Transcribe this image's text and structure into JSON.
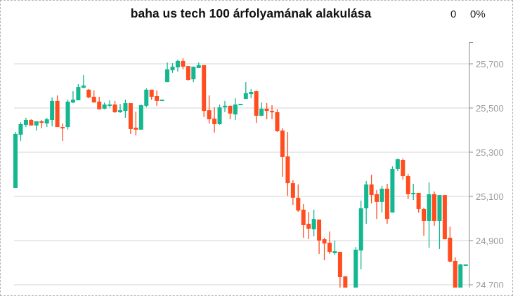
{
  "header": {
    "title": "baha us tech 100 árfolyamának alakulása",
    "change": "0",
    "change_pct": "0%"
  },
  "colors": {
    "up": "#14b78f",
    "down": "#ff4d1f",
    "grid": "#d6d6d6",
    "axis": "#888888"
  },
  "chart_data": {
    "type": "candlestick",
    "title": "baha us tech 100 árfolyamának alakulása",
    "ylim": [
      24687,
      25798
    ],
    "yticks": [
      25700,
      25500,
      25300,
      25100,
      24900,
      24700
    ],
    "ytick_labels": [
      "25,700",
      "25,500",
      "25,300",
      "25,100",
      "24,900",
      "24,700"
    ],
    "grid": true,
    "y_axis_position": "right",
    "fields": [
      "open",
      "high",
      "low",
      "close"
    ],
    "candles": [
      [
        25138,
        25392,
        25138,
        25383
      ],
      [
        25379,
        25436,
        25351,
        25427
      ],
      [
        25424,
        25456,
        25414,
        25446
      ],
      [
        25446,
        25449,
        25421,
        25421
      ],
      [
        25421,
        25440,
        25398,
        25440
      ],
      [
        25440,
        25446,
        25408,
        25433
      ],
      [
        25430,
        25456,
        25414,
        25449
      ],
      [
        25446,
        25548,
        25417,
        25532
      ],
      [
        25532,
        25557,
        25414,
        25414
      ],
      [
        25414,
        25430,
        25351,
        25412
      ],
      [
        25414,
        25538,
        25402,
        25529
      ],
      [
        25525,
        25576,
        25522,
        25538
      ],
      [
        25535,
        25608,
        25535,
        25595
      ],
      [
        25592,
        25649,
        25589,
        25602
      ],
      [
        25583,
        25586,
        25544,
        25548
      ],
      [
        25551,
        25579,
        25525,
        25525
      ],
      [
        25529,
        25551,
        25494,
        25494
      ],
      [
        25497,
        25525,
        25494,
        25516
      ],
      [
        25510,
        25535,
        25503,
        25516
      ],
      [
        25516,
        25532,
        25478,
        25481
      ],
      [
        25481,
        25519,
        25478,
        25490
      ],
      [
        25487,
        25538,
        25456,
        25522
      ],
      [
        25522,
        25522,
        25383,
        25405
      ],
      [
        25411,
        25484,
        25376,
        25402
      ],
      [
        25402,
        25516,
        25402,
        25513
      ],
      [
        25510,
        25589,
        25503,
        25583
      ],
      [
        25583,
        25583,
        25538,
        25551
      ],
      [
        25554,
        25579,
        25510,
        25532
      ],
      [
        25532,
        25538,
        25532,
        25538
      ],
      [
        25617,
        25706,
        25617,
        25675
      ],
      [
        25671,
        25703,
        25659,
        25687
      ],
      [
        25684,
        25719,
        25665,
        25713
      ],
      [
        25713,
        25725,
        25675,
        25687
      ],
      [
        25690,
        25690,
        25624,
        25627
      ],
      [
        25630,
        25687,
        25617,
        25687
      ],
      [
        25681,
        25706,
        25681,
        25694
      ],
      [
        25694,
        25694,
        25459,
        25487
      ],
      [
        25490,
        25557,
        25430,
        25449
      ],
      [
        25452,
        25503,
        25389,
        25427
      ],
      [
        25427,
        25516,
        25424,
        25503
      ],
      [
        25503,
        25532,
        25481,
        25510
      ],
      [
        25510,
        25510,
        25449,
        25475
      ],
      [
        25471,
        25544,
        25446,
        25516
      ],
      [
        25513,
        25519,
        25513,
        25519
      ],
      [
        25541,
        25617,
        25541,
        25567
      ],
      [
        25563,
        25586,
        25544,
        25573
      ],
      [
        25576,
        25579,
        25433,
        25465
      ],
      [
        25465,
        25525,
        25462,
        25497
      ],
      [
        25497,
        25522,
        25449,
        25487
      ],
      [
        25487,
        25513,
        25449,
        25481
      ],
      [
        25481,
        25494,
        25392,
        25395
      ],
      [
        25398,
        25408,
        25189,
        25278
      ],
      [
        25281,
        25392,
        25103,
        25160
      ],
      [
        25160,
        25173,
        25062,
        25094
      ],
      [
        25094,
        25154,
        25030,
        25036
      ],
      [
        25040,
        25065,
        24913,
        24970
      ],
      [
        24976,
        25030,
        24906,
        24954
      ],
      [
        24951,
        25040,
        24919,
        24998
      ],
      [
        24995,
        24995,
        24840,
        24900
      ],
      [
        24906,
        24913,
        24811,
        24887
      ],
      [
        24890,
        24941,
        24840,
        24849
      ],
      [
        24843,
        24900,
        24836,
        24852
      ],
      [
        24849,
        24849,
        24687,
        24735
      ],
      [
        24738,
        24738,
        24640,
        24660
      ],
      null,
      [
        24650,
        24871,
        24620,
        24859
      ],
      [
        24855,
        25081,
        24770,
        25046
      ],
      [
        25046,
        25170,
        24976,
        25154
      ],
      [
        25154,
        25198,
        25068,
        25106
      ],
      [
        25110,
        25129,
        24998,
        25075
      ],
      [
        25075,
        25148,
        25027,
        25135
      ],
      [
        25135,
        25157,
        24976,
        24998
      ],
      [
        25027,
        25236,
        25027,
        25224
      ],
      [
        25224,
        25271,
        25214,
        25268
      ],
      [
        25265,
        25271,
        25176,
        25192
      ],
      [
        25192,
        25202,
        25087,
        25110
      ],
      [
        25110,
        25157,
        25084,
        25116
      ],
      [
        25116,
        25116,
        25027,
        25043
      ],
      [
        25043,
        25049,
        24922,
        24989
      ],
      [
        24989,
        25163,
        24868,
        25110
      ],
      [
        25110,
        25122,
        24967,
        24989
      ],
      [
        24989,
        25106,
        24862,
        25106
      ],
      [
        25106,
        25106,
        24906,
        24906
      ],
      [
        24913,
        24963,
        24801,
        24805
      ],
      [
        24808,
        24824,
        24650,
        24670
      ],
      [
        24680,
        24795,
        24650,
        24792
      ],
      [
        24789,
        24792,
        24789,
        24792
      ]
    ]
  }
}
